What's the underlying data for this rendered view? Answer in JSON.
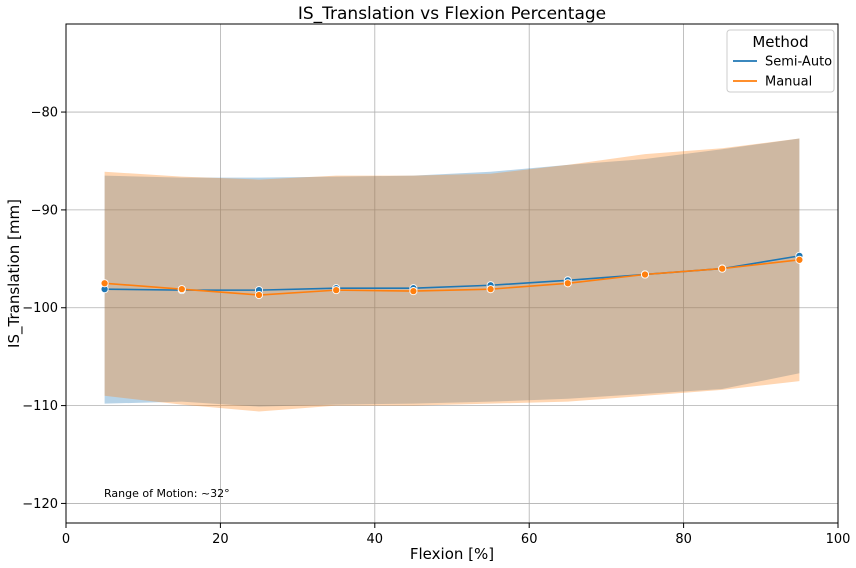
{
  "chart_data": {
    "type": "line",
    "title": "IS_Translation vs Flexion Percentage",
    "xlabel": "Flexion [%]",
    "ylabel": "IS_Translation [mm]",
    "xlim": [
      0,
      100
    ],
    "ylim": [
      -122,
      -71
    ],
    "xticks": [
      0,
      20,
      40,
      60,
      80,
      100
    ],
    "yticks": [
      -120,
      -110,
      -100,
      -90,
      -80
    ],
    "grid": true,
    "legend": {
      "title": "Method",
      "placement": "top-right"
    },
    "annotation": "Range of Motion: ~32°",
    "series": [
      {
        "name": "Semi-Auto",
        "color": "#1f77b4",
        "x": [
          5,
          15,
          25,
          35,
          45,
          55,
          65,
          75,
          85,
          95
        ],
        "y": [
          -98.1,
          -98.2,
          -98.2,
          -98.0,
          -98.0,
          -97.7,
          -97.2,
          -96.6,
          -96.0,
          -94.7
        ],
        "upper": [
          -86.5,
          -86.7,
          -86.7,
          -86.6,
          -86.5,
          -86.1,
          -85.4,
          -84.8,
          -83.8,
          -82.7
        ],
        "lower": [
          -109.8,
          -109.6,
          -110.1,
          -109.9,
          -109.8,
          -109.6,
          -109.3,
          -108.8,
          -108.3,
          -106.7
        ]
      },
      {
        "name": "Manual",
        "color": "#ff7f0e",
        "x": [
          5,
          15,
          25,
          35,
          45,
          55,
          65,
          75,
          85,
          95
        ],
        "y": [
          -97.5,
          -98.1,
          -98.7,
          -98.2,
          -98.3,
          -98.1,
          -97.5,
          -96.6,
          -96.0,
          -95.1
        ],
        "upper": [
          -86.1,
          -86.6,
          -86.9,
          -86.5,
          -86.5,
          -86.3,
          -85.4,
          -84.3,
          -83.7,
          -82.7
        ],
        "lower": [
          -109.0,
          -109.9,
          -110.6,
          -110.0,
          -110.0,
          -109.8,
          -109.6,
          -109.0,
          -108.4,
          -107.5
        ]
      }
    ]
  }
}
